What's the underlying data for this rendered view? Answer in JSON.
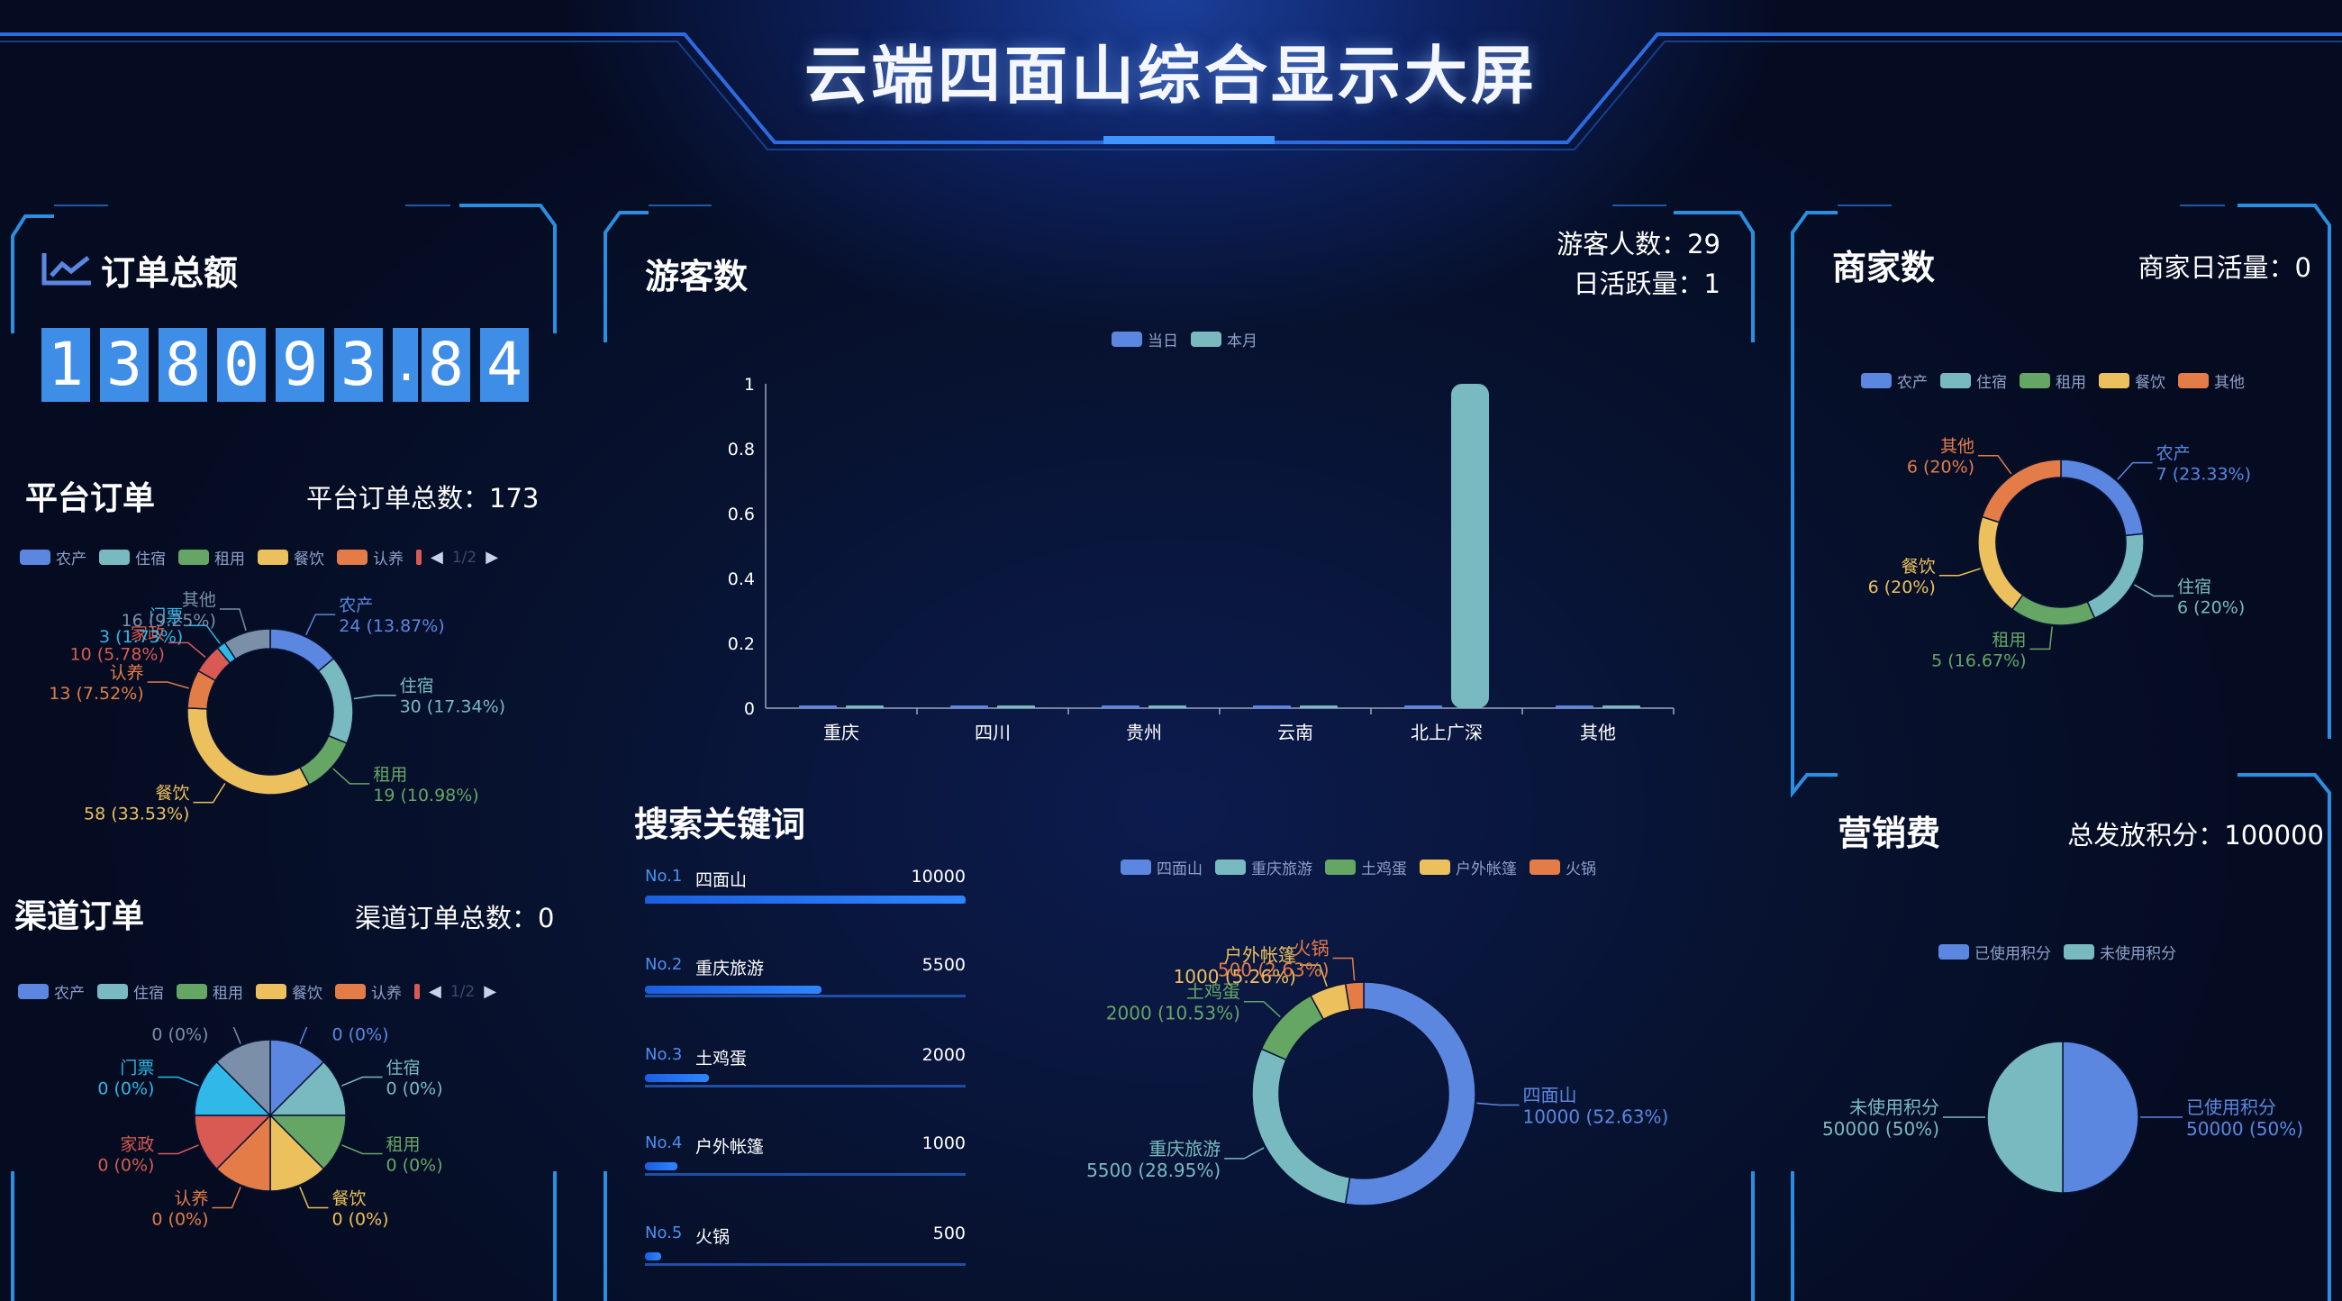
{
  "page": {
    "title": "云端四面山综合显示大屏",
    "colors": {
      "blue": "#5b87e0",
      "teal": "#79bac0",
      "green": "#65a665",
      "yellow": "#ecc05c",
      "orange": "#e47c48",
      "red": "#d85a52",
      "cyan": "#2fb8e8",
      "gray": "#7b8fa8",
      "accent": "#3e8ee8"
    }
  },
  "orders_total": {
    "title": "订单总额",
    "digits": [
      "1",
      "3",
      "8",
      "0",
      "9",
      "3",
      ".",
      "8",
      "4"
    ]
  },
  "platform_orders": {
    "title": "平台订单",
    "total_label": "平台订单总数：173"
  },
  "channel_orders": {
    "title": "渠道订单",
    "total_label": "渠道订单总数：0"
  },
  "visitors": {
    "title": "游客数",
    "visitor_label": "游客人数：29",
    "daily_active_label": "日活跃量：1"
  },
  "keywords": {
    "title": "搜索关键词",
    "items": [
      {
        "rank": "No.1",
        "name": "四面山",
        "value": "10000"
      },
      {
        "rank": "No.2",
        "name": "重庆旅游",
        "value": "5500"
      },
      {
        "rank": "No.3",
        "name": "土鸡蛋",
        "value": "2000"
      },
      {
        "rank": "No.4",
        "name": "户外帐篷",
        "value": "1000"
      },
      {
        "rank": "No.5",
        "name": "火锅",
        "value": "500"
      }
    ]
  },
  "merchants": {
    "title": "商家数",
    "daily_label": "商家日活量：0"
  },
  "marketing": {
    "title": "营销费",
    "total_label": "总发放积分：100000"
  },
  "chart_data": [
    {
      "id": "platform_pie",
      "type": "pie",
      "legend": {
        "items": [
          "农产",
          "住宿",
          "租用",
          "餐饮",
          "认养"
        ],
        "page": "1/2"
      },
      "slices": [
        {
          "name": "农产",
          "value": 24,
          "label": "24 (13.87%)",
          "color": "#5b87e0"
        },
        {
          "name": "住宿",
          "value": 30,
          "label": "30 (17.34%)",
          "color": "#79bac0"
        },
        {
          "name": "租用",
          "value": 19,
          "label": "19 (10.98%)",
          "color": "#65a665"
        },
        {
          "name": "餐饮",
          "value": 58,
          "label": "58 (33.53%)",
          "color": "#ecc05c"
        },
        {
          "name": "认养",
          "value": 13,
          "label": "13 (7.52%)",
          "color": "#e47c48"
        },
        {
          "name": "家政",
          "value": 10,
          "label": "10 (5.78%)",
          "color": "#d85a52"
        },
        {
          "name": "门票",
          "value": 3,
          "label": "3 (1.73%)",
          "color": "#2fb8e8"
        },
        {
          "name": "其他",
          "value": 16,
          "label": "16 (9.25%)",
          "color": "#7b8fa8"
        }
      ]
    },
    {
      "id": "channel_pie",
      "type": "pie",
      "legend": {
        "items": [
          "农产",
          "住宿",
          "租用",
          "餐饮",
          "认养"
        ],
        "page": "1/2"
      },
      "slices": [
        {
          "name": "农产",
          "value": 0,
          "label": "0 (0%)",
          "color": "#5b87e0"
        },
        {
          "name": "住宿",
          "value": 0,
          "label": "0 (0%)",
          "color": "#79bac0"
        },
        {
          "name": "租用",
          "value": 0,
          "label": "0 (0%)",
          "color": "#65a665"
        },
        {
          "name": "餐饮",
          "value": 0,
          "label": "0 (0%)",
          "color": "#ecc05c"
        },
        {
          "name": "认养",
          "value": 0,
          "label": "0 (0%)",
          "color": "#e47c48"
        },
        {
          "name": "家政",
          "value": 0,
          "label": "0 (0%)",
          "color": "#d85a52"
        },
        {
          "name": "门票",
          "value": 0,
          "label": "0 (0%)",
          "color": "#2fb8e8"
        },
        {
          "name": "其他",
          "value": 0,
          "label": "0 (0%)",
          "color": "#7b8fa8"
        }
      ]
    },
    {
      "id": "visitors_bar",
      "type": "bar",
      "categories": [
        "重庆",
        "四川",
        "贵州",
        "云南",
        "北上广深",
        "其他"
      ],
      "series": [
        {
          "name": "当日",
          "values": [
            0,
            0,
            0,
            0,
            0,
            0
          ],
          "color": "#5b87e0"
        },
        {
          "name": "本月",
          "values": [
            0,
            0,
            0,
            0,
            1,
            0
          ],
          "color": "#79bac0"
        }
      ],
      "ylim": [
        0,
        1
      ],
      "yticks": [
        "0",
        "0.2",
        "0.4",
        "0.6",
        "0.8",
        "1"
      ]
    },
    {
      "id": "keywords_pie",
      "type": "pie",
      "legend": {
        "items": [
          "四面山",
          "重庆旅游",
          "土鸡蛋",
          "户外帐篷",
          "火锅"
        ]
      },
      "slices": [
        {
          "name": "四面山",
          "value": 10000,
          "label": "10000 (52.63%)",
          "color": "#5b87e0"
        },
        {
          "name": "重庆旅游",
          "value": 5500,
          "label": "5500 (28.95%)",
          "color": "#79bac0"
        },
        {
          "name": "土鸡蛋",
          "value": 2000,
          "label": "2000 (10.53%)",
          "color": "#65a665"
        },
        {
          "name": "户外帐篷",
          "value": 1000,
          "label": "1000 (5.26%)",
          "color": "#ecc05c"
        },
        {
          "name": "火锅",
          "value": 500,
          "label": "500 (2.63%)",
          "color": "#e47c48"
        }
      ]
    },
    {
      "id": "merchant_pie",
      "type": "pie",
      "legend": {
        "items": [
          "农产",
          "住宿",
          "租用",
          "餐饮",
          "其他"
        ]
      },
      "slices": [
        {
          "name": "农产",
          "value": 7,
          "label": "7 (23.33%)",
          "color": "#5b87e0"
        },
        {
          "name": "住宿",
          "value": 6,
          "label": "6 (20%)",
          "color": "#79bac0"
        },
        {
          "name": "租用",
          "value": 5,
          "label": "5 (16.67%)",
          "color": "#65a665"
        },
        {
          "name": "餐饮",
          "value": 6,
          "label": "6 (20%)",
          "color": "#ecc05c"
        },
        {
          "name": "其他",
          "value": 6,
          "label": "6 (20%)",
          "color": "#e47c48"
        }
      ]
    },
    {
      "id": "marketing_pie",
      "type": "pie",
      "legend": {
        "items": [
          "已使用积分",
          "未使用积分"
        ]
      },
      "slices": [
        {
          "name": "已使用积分",
          "value": 50000,
          "label": "50000 (50%)",
          "color": "#5b87e0"
        },
        {
          "name": "未使用积分",
          "value": 50000,
          "label": "50000 (50%)",
          "color": "#79bac0"
        }
      ]
    }
  ]
}
